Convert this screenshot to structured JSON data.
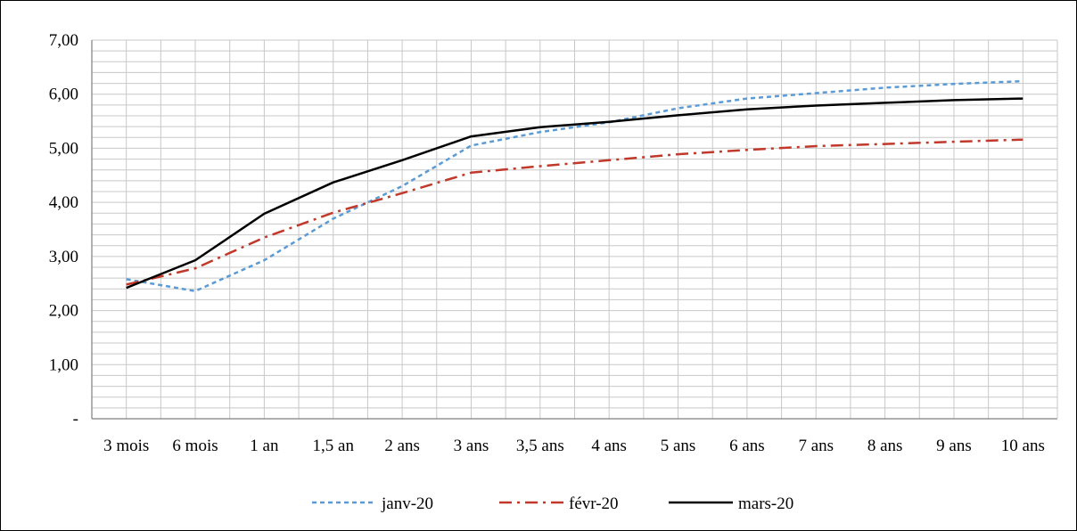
{
  "chart_data": {
    "type": "line",
    "categories": [
      "3 mois",
      "6 mois",
      "1 an",
      "1,5 an",
      "2 ans",
      "3 ans",
      "3,5 ans",
      "4 ans",
      "5 ans",
      "6 ans",
      "7 ans",
      "8 ans",
      "9 ans",
      "10 ans"
    ],
    "y_tick_labels": [
      "-",
      "1,00",
      "2,00",
      "3,00",
      "4,00",
      "5,00",
      "6,00",
      "7,00"
    ],
    "ylim": [
      0,
      7
    ],
    "minor_grid_step": 0.2,
    "grid": true,
    "legend_position": "bottom",
    "series": [
      {
        "name": "janv-20",
        "color": "#5B9BD5",
        "dash": "short-dash",
        "values": [
          2.58,
          2.36,
          2.93,
          3.7,
          4.3,
          5.05,
          5.3,
          5.48,
          5.74,
          5.92,
          6.02,
          6.12,
          6.19,
          6.24
        ]
      },
      {
        "name": "févr-20",
        "color": "#C0392B",
        "dash": "dash-dot",
        "values": [
          2.48,
          2.78,
          3.35,
          3.81,
          4.17,
          4.55,
          4.67,
          4.78,
          4.89,
          4.97,
          5.04,
          5.08,
          5.12,
          5.16
        ]
      },
      {
        "name": "mars-20",
        "color": "#000000",
        "dash": "solid",
        "values": [
          2.42,
          2.93,
          3.79,
          4.37,
          4.78,
          5.22,
          5.39,
          5.49,
          5.61,
          5.72,
          5.79,
          5.84,
          5.89,
          5.92
        ]
      }
    ]
  }
}
